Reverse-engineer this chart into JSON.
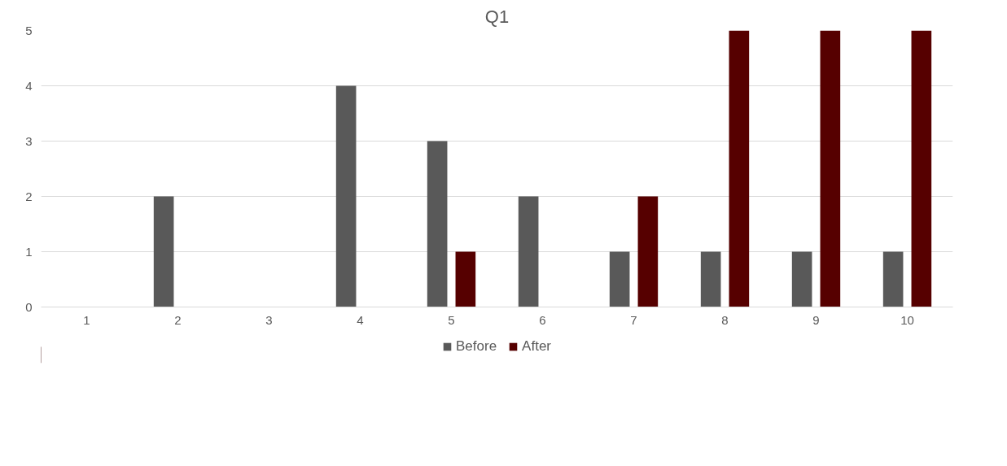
{
  "chart_data": {
    "type": "bar",
    "title": "Q1",
    "categories": [
      "1",
      "2",
      "3",
      "4",
      "5",
      "6",
      "7",
      "8",
      "9",
      "10"
    ],
    "series": [
      {
        "name": "Before",
        "color": "#595959",
        "values": [
          0,
          2,
          0,
          4,
          3,
          2,
          1,
          1,
          1,
          1
        ]
      },
      {
        "name": "After",
        "color": "#560000",
        "values": [
          0,
          0,
          0,
          0,
          1,
          0,
          2,
          5,
          5,
          5
        ]
      }
    ],
    "ylim": [
      0,
      5
    ],
    "yticks": [
      0,
      1,
      2,
      3,
      4,
      5
    ],
    "grid": "y",
    "legend": "bottom"
  }
}
